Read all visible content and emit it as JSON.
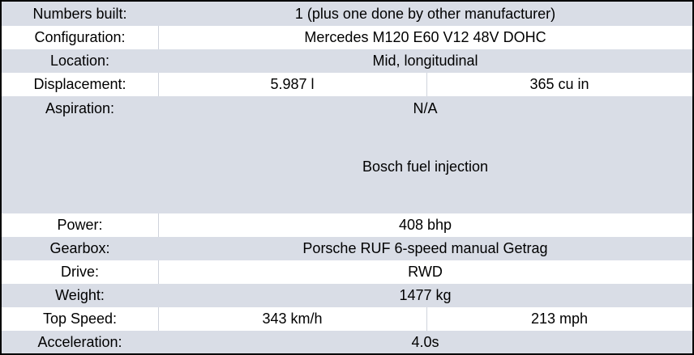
{
  "rows": [
    {
      "label": "Numbers built:",
      "value": "1 (plus one done by other manufacturer)"
    },
    {
      "label": "Configuration:",
      "value": "Mercedes M120 E60 V12 48V DOHC"
    },
    {
      "label": "Location:",
      "value": "Mid, longitudinal"
    },
    {
      "label": "Displacement:",
      "value_a": "5.987 l",
      "value_b": "365 cu in"
    },
    {
      "label": "Aspiration:",
      "value": "N/A",
      "value_extra": "Bosch fuel injection"
    },
    {
      "label": "Power:",
      "value": "408 bhp"
    },
    {
      "label": "Gearbox:",
      "value": "Porsche RUF 6-speed manual Getrag"
    },
    {
      "label": "Drive:",
      "value": "RWD"
    },
    {
      "label": "Weight:",
      "value": "1477 kg"
    },
    {
      "label": "Top Speed:",
      "value_a": "343 km/h",
      "value_b": "213 mph"
    },
    {
      "label": "Acceleration:",
      "value": "4.0s"
    }
  ]
}
